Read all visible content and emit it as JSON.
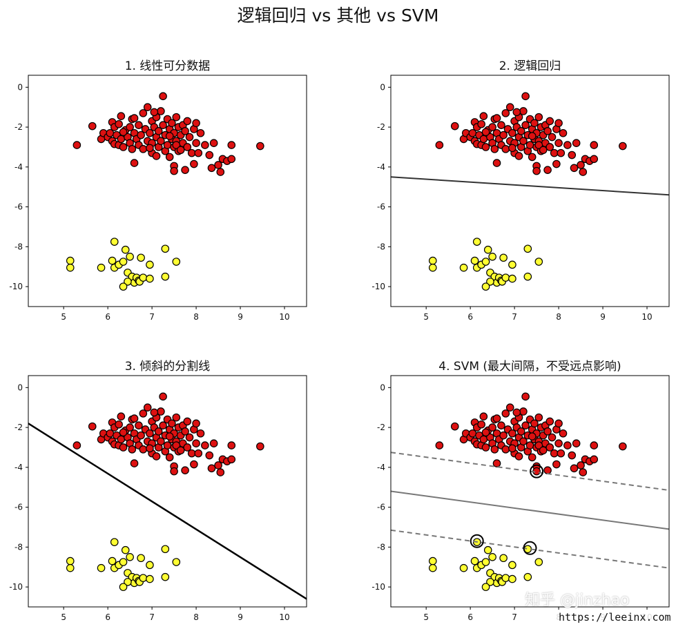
{
  "suptitle": "逻辑回归 vs 其他 vs SVM",
  "watermark": "知乎 @jinzhao",
  "watermark_url": "https://leeinx.com",
  "colors": {
    "red": "#dd1111",
    "yellow": "#ffff33",
    "edge": "#000000",
    "axes": "#000000"
  },
  "chart_data": [
    {
      "type": "scatter",
      "title": "1. 线性可分数据",
      "xlim": [
        4.2,
        10.5
      ],
      "ylim": [
        -11.0,
        0.6
      ],
      "xticks": [
        "5",
        "6",
        "7",
        "8",
        "9",
        "10"
      ],
      "yticks": [
        "0",
        "-2",
        "-4",
        "-6",
        "-8",
        "-10"
      ],
      "lines": [],
      "support_vectors": []
    },
    {
      "type": "scatter",
      "title": "2. 逻辑回归",
      "xlim": [
        4.2,
        10.5
      ],
      "ylim": [
        -11.0,
        0.6
      ],
      "xticks": [
        "5",
        "6",
        "7",
        "8",
        "9",
        "10"
      ],
      "yticks": [
        "0",
        "-2",
        "-4",
        "-6",
        "-8",
        "-10"
      ],
      "lines": [
        {
          "x": [
            4.2,
            10.5
          ],
          "y": [
            -4.5,
            -5.4
          ],
          "color": "#333333",
          "dash": "solid",
          "width": 2
        }
      ],
      "support_vectors": []
    },
    {
      "type": "scatter",
      "title": "3. 倾斜的分割线",
      "xlim": [
        4.2,
        10.5
      ],
      "ylim": [
        -11.0,
        0.6
      ],
      "xticks": [
        "5",
        "6",
        "7",
        "8",
        "9",
        "10"
      ],
      "yticks": [
        "0",
        "-2",
        "-4",
        "-6",
        "-8",
        "-10"
      ],
      "lines": [
        {
          "x": [
            4.2,
            10.5
          ],
          "y": [
            -1.8,
            -10.6
          ],
          "color": "#000000",
          "dash": "solid",
          "width": 2.5
        }
      ],
      "support_vectors": []
    },
    {
      "type": "scatter",
      "title": "4. SVM (最大间隔，不受远点影响)",
      "xlim": [
        4.2,
        10.5
      ],
      "ylim": [
        -11.0,
        0.6
      ],
      "xticks": [
        "5",
        "6",
        "7",
        "8",
        "9",
        "10"
      ],
      "yticks": [
        "0",
        "-2",
        "-4",
        "-6",
        "-8",
        "-10"
      ],
      "lines": [
        {
          "x": [
            4.2,
            10.5
          ],
          "y": [
            -5.2,
            -7.1
          ],
          "color": "#777777",
          "dash": "solid",
          "width": 2
        },
        {
          "x": [
            4.2,
            10.5
          ],
          "y": [
            -3.25,
            -5.15
          ],
          "color": "#777777",
          "dash": "dashed",
          "width": 2
        },
        {
          "x": [
            4.2,
            10.5
          ],
          "y": [
            -7.15,
            -9.05
          ],
          "color": "#777777",
          "dash": "dashed",
          "width": 2
        }
      ],
      "support_vectors": [
        [
          7.5,
          -4.2
        ],
        [
          6.15,
          -7.7
        ],
        [
          7.35,
          -8.05
        ]
      ]
    }
  ],
  "points": {
    "class_yellow": [
      [
        5.15,
        -8.7
      ],
      [
        5.15,
        -9.05
      ],
      [
        5.85,
        -9.05
      ],
      [
        6.1,
        -8.7
      ],
      [
        6.15,
        -7.75
      ],
      [
        6.15,
        -9.05
      ],
      [
        6.25,
        -8.9
      ],
      [
        6.35,
        -8.75
      ],
      [
        6.4,
        -8.15
      ],
      [
        6.45,
        -9.3
      ],
      [
        6.5,
        -8.5
      ],
      [
        6.55,
        -9.5
      ],
      [
        6.6,
        -9.8
      ],
      [
        6.65,
        -9.55
      ],
      [
        6.7,
        -9.7
      ],
      [
        6.72,
        -9.75
      ],
      [
        6.75,
        -8.55
      ],
      [
        6.8,
        -9.55
      ],
      [
        6.95,
        -8.9
      ],
      [
        6.95,
        -9.6
      ],
      [
        7.3,
        -8.1
      ],
      [
        7.3,
        -9.5
      ],
      [
        7.55,
        -8.75
      ],
      [
        6.45,
        -9.75
      ],
      [
        6.35,
        -10.0
      ]
    ],
    "class_red": [
      [
        5.3,
        -2.9
      ],
      [
        5.65,
        -1.95
      ],
      [
        5.85,
        -2.6
      ],
      [
        5.9,
        -2.3
      ],
      [
        6.0,
        -2.5
      ],
      [
        6.05,
        -2.3
      ],
      [
        6.1,
        -2.7
      ],
      [
        6.1,
        -1.75
      ],
      [
        6.15,
        -2.0
      ],
      [
        6.15,
        -2.85
      ],
      [
        6.2,
        -2.4
      ],
      [
        6.25,
        -2.9
      ],
      [
        6.3,
        -1.45
      ],
      [
        6.3,
        -2.6
      ],
      [
        6.35,
        -3.0
      ],
      [
        6.4,
        -2.15
      ],
      [
        6.45,
        -2.5
      ],
      [
        6.5,
        -2.0
      ],
      [
        6.5,
        -2.8
      ],
      [
        6.55,
        -1.6
      ],
      [
        6.55,
        -3.1
      ],
      [
        6.6,
        -2.3
      ],
      [
        6.6,
        -3.8
      ],
      [
        6.65,
        -2.6
      ],
      [
        6.7,
        -1.9
      ],
      [
        6.7,
        -2.9
      ],
      [
        6.75,
        -2.4
      ],
      [
        6.8,
        -1.3
      ],
      [
        6.8,
        -3.1
      ],
      [
        6.85,
        -2.1
      ],
      [
        6.9,
        -2.7
      ],
      [
        6.9,
        -1.0
      ],
      [
        6.95,
        -2.3
      ],
      [
        7.0,
        -1.7
      ],
      [
        7.0,
        -2.8
      ],
      [
        7.0,
        -3.3
      ],
      [
        7.05,
        -2.0
      ],
      [
        7.1,
        -2.5
      ],
      [
        7.1,
        -1.5
      ],
      [
        7.15,
        -3.0
      ],
      [
        7.15,
        -2.2
      ],
      [
        7.2,
        -1.2
      ],
      [
        7.2,
        -2.7
      ],
      [
        7.25,
        -1.9
      ],
      [
        7.25,
        -0.45
      ],
      [
        7.3,
        -2.4
      ],
      [
        7.3,
        -3.2
      ],
      [
        7.35,
        -1.6
      ],
      [
        7.35,
        -2.9
      ],
      [
        7.4,
        -2.1
      ],
      [
        7.4,
        -3.5
      ],
      [
        7.45,
        -2.6
      ],
      [
        7.45,
        -1.8
      ],
      [
        7.5,
        -2.3
      ],
      [
        7.5,
        -3.0
      ],
      [
        7.55,
        -1.5
      ],
      [
        7.55,
        -2.7
      ],
      [
        7.6,
        -2.0
      ],
      [
        7.6,
        -3.2
      ],
      [
        7.65,
        -2.4
      ],
      [
        7.7,
        -1.9
      ],
      [
        7.7,
        -2.8
      ],
      [
        7.75,
        -2.2
      ],
      [
        7.8,
        -3.0
      ],
      [
        7.8,
        -1.7
      ],
      [
        7.85,
        -2.5
      ],
      [
        7.9,
        -3.3
      ],
      [
        7.95,
        -2.1
      ],
      [
        8.0,
        -1.8
      ],
      [
        8.0,
        -2.8
      ],
      [
        8.05,
        -3.3
      ],
      [
        8.1,
        -2.3
      ],
      [
        8.2,
        -2.9
      ],
      [
        8.3,
        -3.4
      ],
      [
        8.4,
        -2.8
      ],
      [
        8.5,
        -3.9
      ],
      [
        8.6,
        -3.6
      ],
      [
        8.7,
        -3.7
      ],
      [
        8.8,
        -3.6
      ],
      [
        8.8,
        -2.9
      ],
      [
        8.55,
        -4.25
      ],
      [
        8.35,
        -4.05
      ],
      [
        7.95,
        -3.85
      ],
      [
        7.75,
        -4.15
      ],
      [
        7.5,
        -3.95
      ],
      [
        7.5,
        -4.2
      ],
      [
        9.45,
        -2.95
      ],
      [
        6.25,
        -1.85
      ],
      [
        6.6,
        -1.55
      ],
      [
        7.05,
        -1.25
      ],
      [
        7.55,
        -2.9
      ],
      [
        6.95,
        -3.05
      ],
      [
        6.35,
        -2.25
      ],
      [
        7.4,
        -2.45
      ],
      [
        7.1,
        -3.45
      ],
      [
        7.65,
        -3.15
      ]
    ]
  }
}
